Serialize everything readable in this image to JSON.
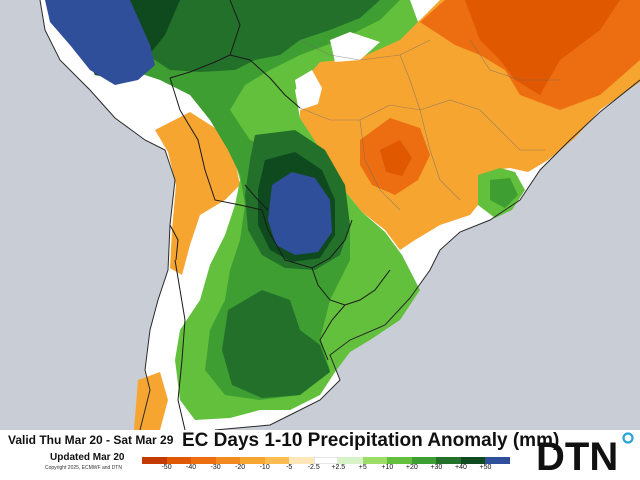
{
  "footer": {
    "valid_text": "Valid Thu Mar 20 - Sat Mar 29",
    "updated_text": "Updated Mar 20",
    "copyright_text": "Copyright 2025, ECMWF and DTN",
    "map_title": "EC Days 1-10 Precipitation Anomaly (mm)"
  },
  "legend": {
    "swatches": [
      {
        "color": "#c23a00",
        "range": "< -50"
      },
      {
        "color": "#e05800",
        "range": "-50 to -40"
      },
      {
        "color": "#ec6e10",
        "range": "-40 to -30"
      },
      {
        "color": "#f28a20",
        "range": "-30 to -20"
      },
      {
        "color": "#f7a531",
        "range": "-20 to -10"
      },
      {
        "color": "#fbbd52",
        "range": "-10 to -5"
      },
      {
        "color": "#fde7b8",
        "range": "-5 to -2.5"
      },
      {
        "color": "#ffffff",
        "range": "-2.5 to +2.5"
      },
      {
        "color": "#d8f2c8",
        "range": "+2.5 to +5"
      },
      {
        "color": "#9ddc66",
        "range": "+5 to +10"
      },
      {
        "color": "#62c03d",
        "range": "+10 to +20"
      },
      {
        "color": "#3f9e32",
        "range": "+20 to +30"
      },
      {
        "color": "#22702a",
        "range": "+30 to +40"
      },
      {
        "color": "#0f4a1f",
        "range": "+40 to +50"
      },
      {
        "color": "#2f4f9a",
        "range": "> +50"
      }
    ],
    "tick_labels": [
      "-50",
      "-40",
      "-30",
      "-20",
      "-10",
      "-5",
      "-2.5",
      "+2.5",
      "+5",
      "+10",
      "+20",
      "+30",
      "+40",
      "+50"
    ]
  },
  "brand": {
    "logo_text": "DTN",
    "logo_color": "#111111",
    "dot_color": "#2aa3d8"
  },
  "colors": {
    "ocean": "#c8cdd6",
    "border": "#1a1a1a"
  }
}
